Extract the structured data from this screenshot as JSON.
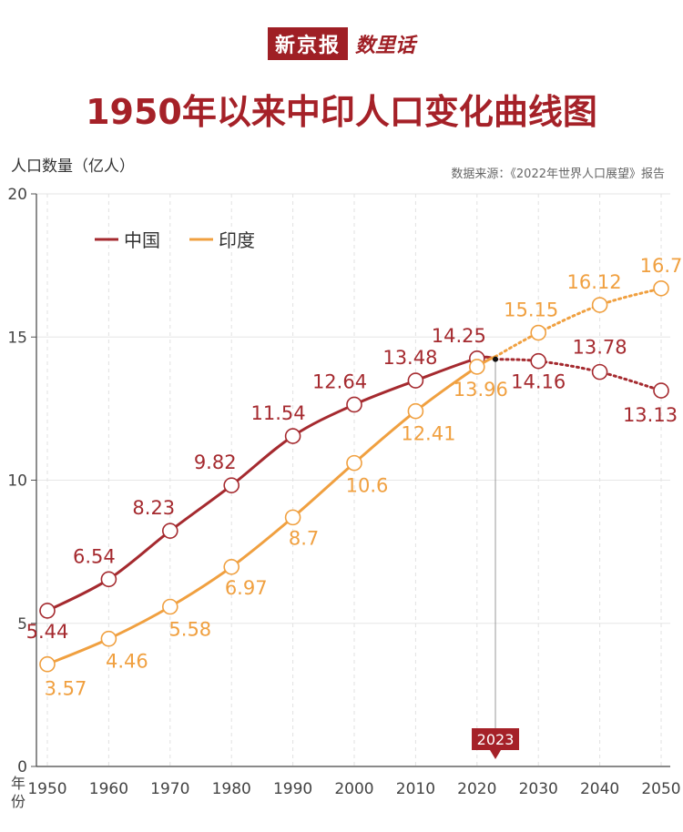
{
  "header": {
    "brand_main": "新京报",
    "brand_sub": "数里话",
    "title": "1950年以来中印人口变化曲线图",
    "ylabel": "人口数量（亿人）",
    "source": "数据来源：《2022年世界人口展望》报告"
  },
  "chart_data": {
    "type": "line",
    "title": "1950年以来中印人口变化曲线图",
    "xlabel": "年份",
    "ylabel": "人口数量（亿人）",
    "x": [
      1950,
      1960,
      1970,
      1980,
      1990,
      2000,
      2010,
      2020,
      2030,
      2040,
      2050
    ],
    "xlim": [
      1950,
      2050
    ],
    "ylim": [
      0,
      20
    ],
    "yticks": [
      0,
      5,
      10,
      15,
      20
    ],
    "xtick_labels": [
      "1950",
      "1960",
      "1970",
      "1980",
      "1990",
      "2000",
      "2010",
      "2020",
      "2030",
      "2040",
      "2050"
    ],
    "ytick_labels": [
      "0",
      "5",
      "10",
      "15",
      "20"
    ],
    "marker_year": 2023,
    "marker_label": "2023",
    "grid": true,
    "legend_position": "top-left",
    "colors": {
      "china": "#a52a2f",
      "india": "#f0a040"
    },
    "series": [
      {
        "name": "中国",
        "key": "china",
        "values": [
          5.44,
          6.54,
          8.23,
          9.82,
          11.54,
          12.64,
          13.48,
          14.25,
          14.16,
          13.78,
          13.13
        ],
        "labels": [
          "5.44",
          "6.54",
          "8.23",
          "9.82",
          "11.54",
          "12.64",
          "13.48",
          "14.25",
          "14.16",
          "13.78",
          "13.13"
        ]
      },
      {
        "name": "印度",
        "key": "india",
        "values": [
          3.57,
          4.46,
          5.58,
          6.97,
          8.7,
          10.6,
          12.41,
          13.96,
          15.15,
          16.12,
          16.7
        ],
        "labels": [
          "3.57",
          "4.46",
          "5.58",
          "6.97",
          "8.7",
          "10.6",
          "12.41",
          "13.96",
          "15.15",
          "16.12",
          "16.7"
        ]
      }
    ]
  }
}
